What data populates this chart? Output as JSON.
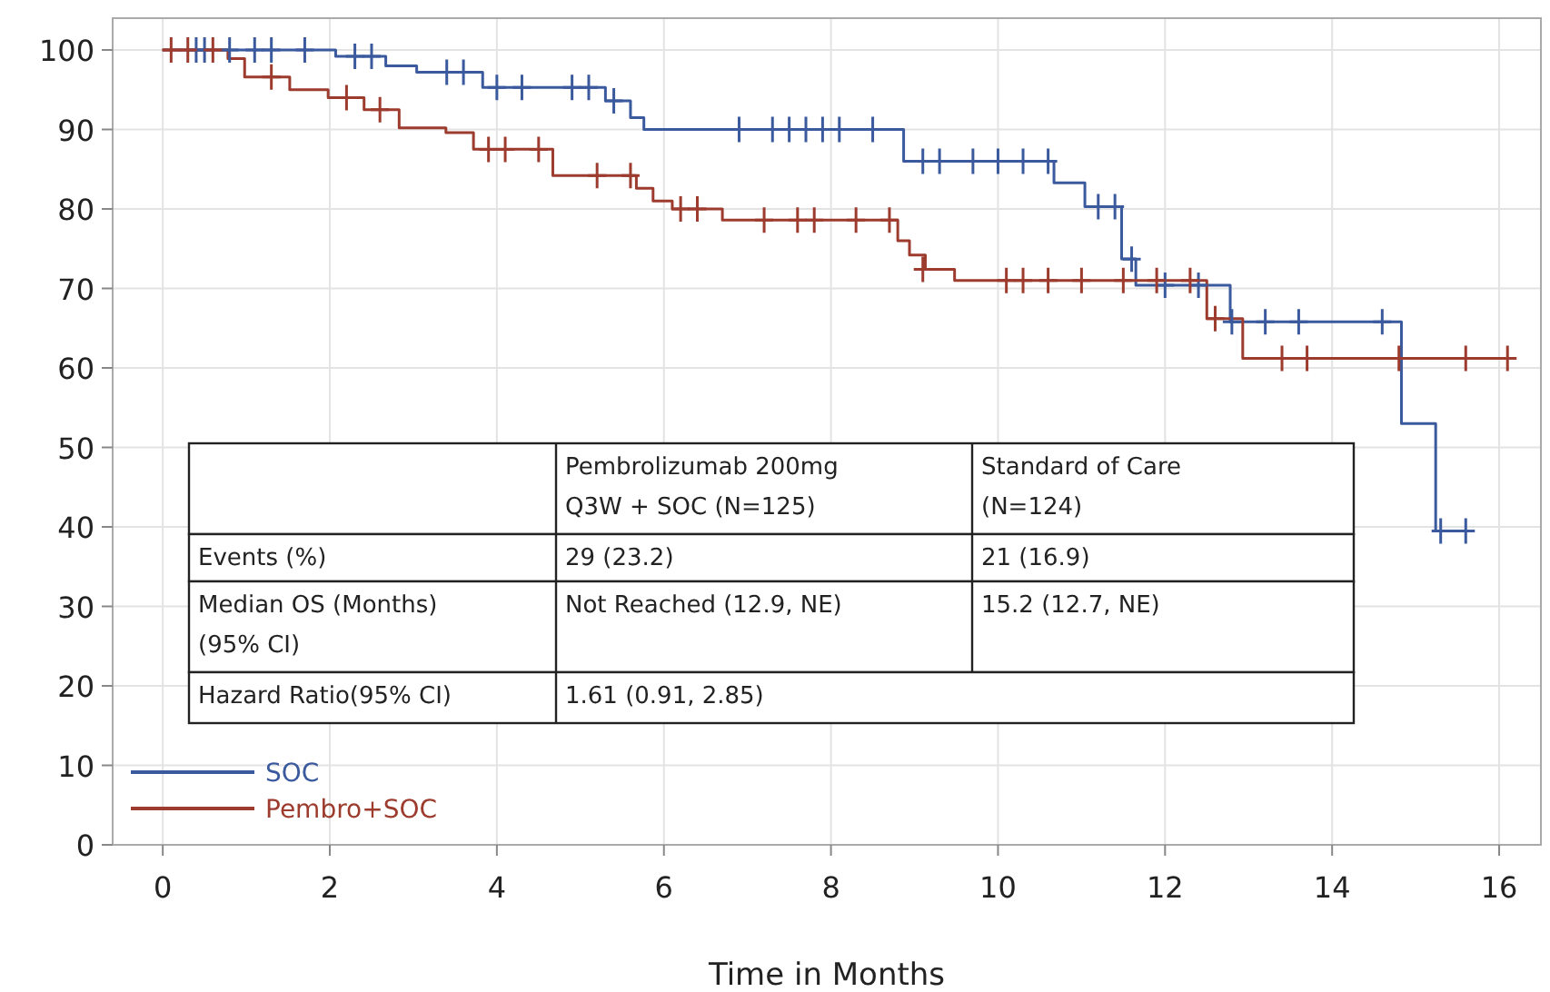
{
  "chart_data": {
    "type": "step",
    "xlabel": "Time in Months",
    "xlim": [
      -0.6,
      16.5
    ],
    "ylim": [
      0,
      104
    ],
    "xticks": [
      0,
      2,
      4,
      6,
      8,
      10,
      12,
      14,
      16
    ],
    "yticks": [
      0,
      10,
      20,
      30,
      40,
      50,
      60,
      70,
      80,
      90,
      100
    ],
    "grid": true,
    "legend": "bottom left",
    "marker": "none",
    "line_style": "solid",
    "series": [
      {
        "name": "SOC",
        "color": "#3b5a9d",
        "x": [
          0,
          2.07,
          2.67,
          3.04,
          3.83,
          5.3,
          5.6,
          5.76,
          8.87,
          10.67,
          11.04,
          11.48,
          11.65,
          12.78,
          14.83,
          15.24,
          15.7
        ],
        "values": [
          100,
          99.2,
          98,
          97.2,
          95.3,
          93.6,
          91.5,
          90,
          86,
          83.3,
          80.3,
          73.7,
          70.4,
          65.8,
          53,
          39.5,
          39.5
        ]
      },
      {
        "name": "Pembro+SOC",
        "color": "#9c3b2e",
        "x": [
          0,
          0.78,
          0.98,
          1.52,
          1.98,
          2.41,
          2.83,
          3.39,
          3.72,
          4.67,
          5.67,
          5.87,
          6.1,
          6.7,
          8.8,
          8.94,
          9.13,
          9.48,
          12.5,
          12.93,
          16.2
        ],
        "values": [
          100,
          98.9,
          96.6,
          95,
          94,
          92.5,
          90.2,
          89.6,
          87.5,
          84.2,
          82.6,
          81,
          80,
          78.6,
          76,
          74.2,
          72.4,
          71,
          66.2,
          61.2,
          61.2
        ]
      },
      {
        "type": "scatter",
        "marker": "cross",
        "color": "#3b5a9d",
        "x": [
          0.4,
          0.5,
          0.8,
          1.1,
          1.3,
          1.7,
          2.3,
          2.5,
          3.4,
          3.6,
          4.0,
          4.3,
          4.9,
          5.1,
          5.4,
          6.9,
          7.3,
          7.5,
          7.7,
          7.9,
          8.1,
          8.5,
          9.1,
          9.3,
          9.7,
          10.0,
          10.3,
          10.6,
          11.2,
          11.4,
          11.6,
          12.0,
          12.4,
          12.8,
          13.2,
          13.6,
          14.6,
          15.3,
          15.6
        ],
        "values": [
          100,
          100,
          100,
          100,
          100,
          100,
          99.2,
          99.2,
          97.2,
          97.2,
          95.3,
          95.3,
          95.3,
          95.3,
          93.6,
          90,
          90,
          90,
          90,
          90,
          90,
          90,
          86,
          86,
          86,
          86,
          86,
          86,
          80.3,
          80.3,
          73.7,
          70.4,
          70.4,
          65.8,
          65.8,
          65.8,
          65.8,
          39.5,
          39.5
        ]
      },
      {
        "type": "scatter",
        "marker": "cross",
        "color": "#9c3b2e",
        "x": [
          0.1,
          0.3,
          0.6,
          1.3,
          2.2,
          2.6,
          3.9,
          4.1,
          4.5,
          5.2,
          5.6,
          6.2,
          6.4,
          7.2,
          7.6,
          7.8,
          8.3,
          8.7,
          9.1,
          10.1,
          10.3,
          10.6,
          11.0,
          11.5,
          11.9,
          12.3,
          12.6,
          13.4,
          13.7,
          14.8,
          15.6,
          16.1
        ],
        "values": [
          100,
          100,
          100,
          96.6,
          94,
          92.5,
          87.5,
          87.5,
          87.5,
          84.2,
          84.2,
          80,
          80,
          78.6,
          78.6,
          78.6,
          78.6,
          78.6,
          72.4,
          71,
          71,
          71,
          71,
          71,
          71,
          71,
          66.2,
          61.2,
          61.2,
          61.2,
          61.2,
          61.2
        ]
      }
    ],
    "annotations": [
      "Pembrolizumab 200mg Q3W + SOC (N=125)",
      "Standard of Care (N=124)",
      "Events (%)",
      "29 (23.2)",
      "21 (16.9)",
      "Median OS (Months) (95% CI)",
      "Not Reached (12.9, NE)",
      "15.2 (12.7, NE)",
      "Hazard Ratio(95% CI)",
      "1.61 (0.91, 2.85)"
    ]
  }
}
